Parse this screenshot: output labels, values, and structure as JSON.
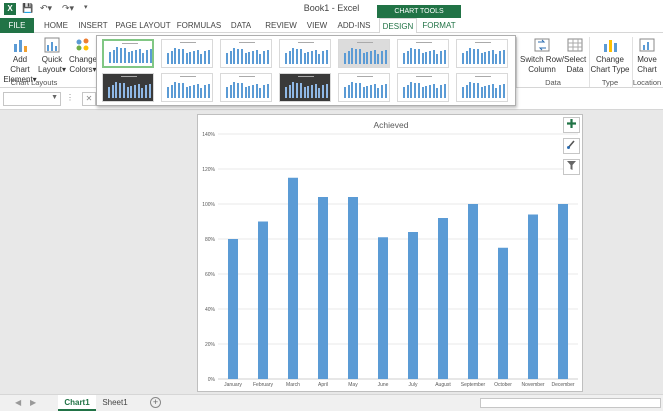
{
  "app": {
    "title": "Book1 - Excel",
    "logo": "X",
    "chart_tools": "CHART TOOLS"
  },
  "tabs": [
    "FILE",
    "HOME",
    "INSERT",
    "PAGE LAYOUT",
    "FORMULAS",
    "DATA",
    "REVIEW",
    "VIEW",
    "ADD-INS",
    "DESIGN",
    "FORMAT"
  ],
  "ribbon": {
    "add_chart": [
      "Add Chart",
      "Element"
    ],
    "quick_layout": [
      "Quick",
      "Layout"
    ],
    "change_colors": [
      "Change",
      "Colors"
    ],
    "chart_layouts_label": "Chart Layouts",
    "switch_row": [
      "Switch Row/",
      "Column"
    ],
    "select_data": [
      "Select",
      "Data"
    ],
    "data_label": "Data",
    "change_type": [
      "Change",
      "Chart Type"
    ],
    "type_label": "Type",
    "move_chart": [
      "Move",
      "Chart"
    ],
    "location_label": "Location"
  },
  "formula": {
    "fx": "fx",
    "cancel": "✕"
  },
  "chart_data": {
    "type": "bar",
    "title": "Achieved",
    "categories": [
      "January",
      "February",
      "March",
      "April",
      "May",
      "June",
      "July",
      "August",
      "September",
      "October",
      "November",
      "December"
    ],
    "values": [
      0.8,
      0.9,
      1.15,
      1.04,
      1.04,
      0.81,
      0.84,
      0.92,
      1.0,
      0.75,
      0.94,
      1.0
    ],
    "yticks": [
      "0%",
      "20%",
      "40%",
      "60%",
      "80%",
      "100%",
      "120%",
      "140%"
    ],
    "ylim": [
      0,
      1.4
    ],
    "color": "#5b9bd5",
    "grid": true
  },
  "sheets": [
    "Chart1",
    "Sheet1"
  ],
  "colors": {
    "accent": "#217346",
    "bar": "#5b9bd5"
  }
}
